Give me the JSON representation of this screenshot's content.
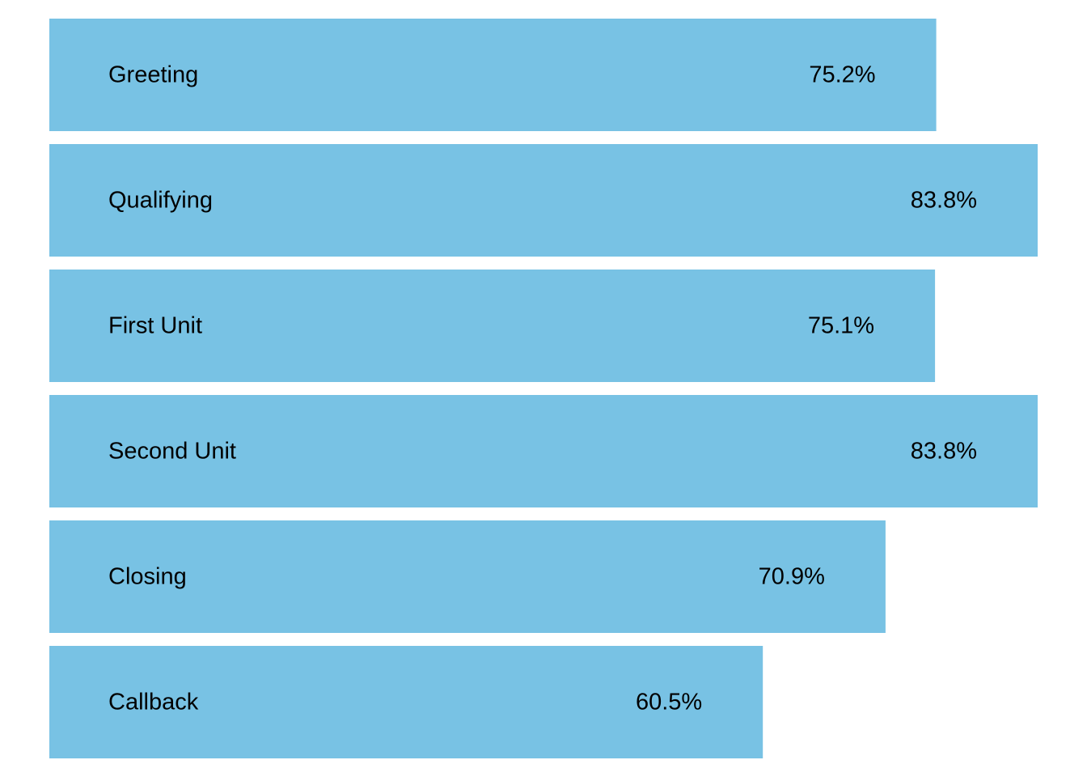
{
  "chart_data": {
    "type": "bar",
    "orientation": "horizontal",
    "categories": [
      "Greeting",
      "Qualifying",
      "First Unit",
      "Second Unit",
      "Closing",
      "Callback"
    ],
    "values": [
      75.2,
      83.8,
      75.1,
      83.8,
      70.9,
      60.5
    ],
    "value_labels": [
      "75.2%",
      "83.8%",
      "75.1%",
      "83.8%",
      "70.9%",
      "60.5%"
    ],
    "unit": "%",
    "title": "",
    "xlabel": "",
    "ylabel": "",
    "grid": false,
    "legend": "none",
    "bar_color": "#78C2E4"
  }
}
